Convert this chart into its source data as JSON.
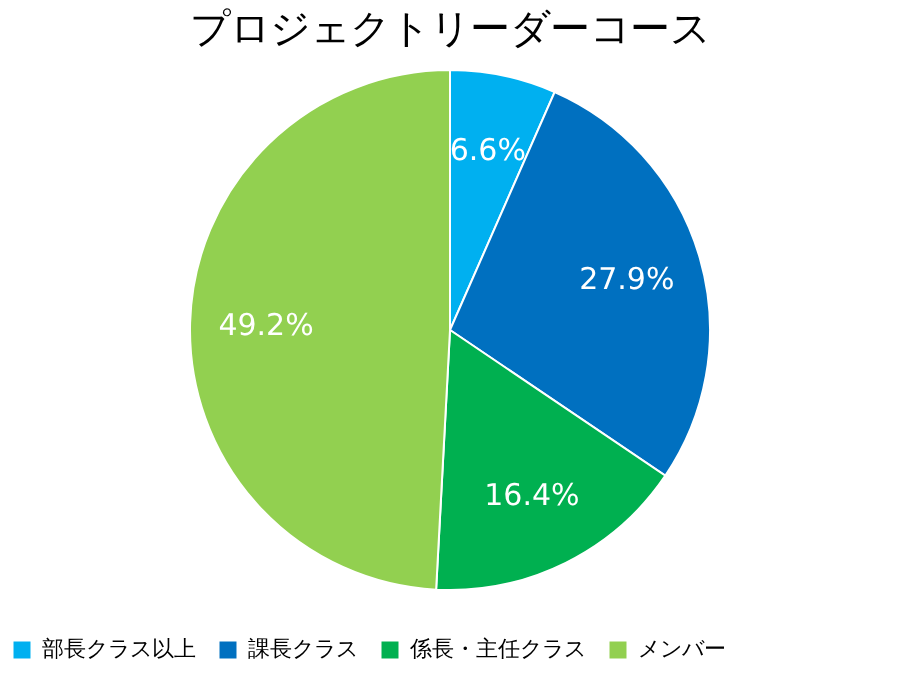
{
  "chart_data": {
    "type": "pie",
    "title": "プロジェクトリーダーコース",
    "categories": [
      "部長クラス以上",
      "課長クラス",
      "係長・主任クラス",
      "メンバー"
    ],
    "values": [
      6.6,
      27.9,
      16.4,
      49.2
    ],
    "colors": [
      "#00b0f0",
      "#0070c0",
      "#00b050",
      "#92d050"
    ],
    "value_labels": [
      "6.6%",
      "27.9%",
      "16.4%",
      "49.2%"
    ],
    "legend": "bottom"
  }
}
